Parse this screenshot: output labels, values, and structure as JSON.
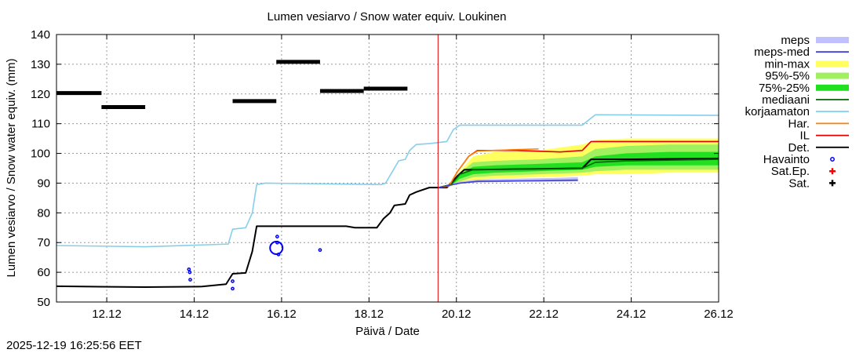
{
  "chart_data": {
    "type": "line",
    "title": "Lumen vesiarvo / Snow water equiv.  Loukinen",
    "xlabel": "Päivä / Date",
    "ylabel": "Lumen vesiarvo / Snow water equiv. (mm)",
    "xlim": [
      10.97,
      26.12
    ],
    "ylim": [
      50,
      140
    ],
    "yticks": [
      50,
      60,
      70,
      80,
      90,
      100,
      110,
      120,
      130,
      140
    ],
    "xticks": [
      {
        "x": 12.12,
        "label": "12.12"
      },
      {
        "x": 14.12,
        "label": "14.12"
      },
      {
        "x": 16.12,
        "label": "16.12"
      },
      {
        "x": 18.12,
        "label": "18.12"
      },
      {
        "x": 20.12,
        "label": "20.12"
      },
      {
        "x": 22.12,
        "label": "22.12"
      },
      {
        "x": 24.12,
        "label": "24.12"
      },
      {
        "x": 26.12,
        "label": "26.12"
      }
    ],
    "grid": true,
    "forecast_start": 19.7,
    "timestamp": "2025-12-19 16:25:56 EET",
    "legend": [
      {
        "label": "meps",
        "kind": "band",
        "color": "#c0c0ff"
      },
      {
        "label": "meps-med",
        "kind": "line",
        "color": "#4040d0"
      },
      {
        "label": "min-max",
        "kind": "band",
        "color": "#ffff60"
      },
      {
        "label": "95%-5%",
        "kind": "band",
        "color": "#a0f060"
      },
      {
        "label": "75%-25%",
        "kind": "band",
        "color": "#20e020"
      },
      {
        "label": "mediaani",
        "kind": "line",
        "color": "#006400"
      },
      {
        "label": "korjaamaton",
        "kind": "line",
        "color": "#87ceeb"
      },
      {
        "label": "Har.",
        "kind": "line",
        "color": "#ff8000"
      },
      {
        "label": "IL",
        "kind": "line",
        "color": "#e00000"
      },
      {
        "label": "Det.",
        "kind": "line",
        "color": "#000000"
      },
      {
        "label": "Havainto",
        "kind": "circle",
        "color": "#0000ff"
      },
      {
        "label": "Sat.Ep.",
        "kind": "plus",
        "color": "#ff0000"
      },
      {
        "label": "Sat.",
        "kind": "plus",
        "color": "#000000"
      }
    ],
    "series": [
      {
        "name": "korjaamaton",
        "color": "#87ceeb",
        "points": [
          [
            10.97,
            69
          ],
          [
            13.0,
            68.6
          ],
          [
            14.3,
            69.2
          ],
          [
            14.9,
            69.5
          ],
          [
            15.0,
            74.5
          ],
          [
            15.3,
            75
          ],
          [
            15.45,
            80
          ],
          [
            15.55,
            89.5
          ],
          [
            15.75,
            90
          ],
          [
            18.4,
            89.5
          ],
          [
            18.5,
            90
          ],
          [
            18.7,
            95
          ],
          [
            18.8,
            97.5
          ],
          [
            18.95,
            98
          ],
          [
            19.05,
            101
          ],
          [
            19.2,
            103
          ],
          [
            19.5,
            103.3
          ],
          [
            19.9,
            104
          ],
          [
            20.05,
            108
          ],
          [
            20.2,
            109.5
          ],
          [
            23.0,
            109.5
          ],
          [
            23.3,
            113
          ],
          [
            26.12,
            112.8
          ]
        ]
      },
      {
        "name": "Det.",
        "color": "#000000",
        "points": [
          [
            10.97,
            55.3
          ],
          [
            13.0,
            55
          ],
          [
            14.3,
            55.2
          ],
          [
            14.85,
            56
          ],
          [
            15.0,
            59.5
          ],
          [
            15.3,
            59.8
          ],
          [
            15.45,
            67
          ],
          [
            15.55,
            75.5
          ],
          [
            15.75,
            75.5
          ],
          [
            17.6,
            75.5
          ],
          [
            17.8,
            75
          ],
          [
            18.3,
            75
          ],
          [
            18.45,
            78
          ],
          [
            18.6,
            80
          ],
          [
            18.7,
            82.5
          ],
          [
            18.95,
            83
          ],
          [
            19.05,
            86
          ],
          [
            19.2,
            87
          ],
          [
            19.5,
            88.5
          ],
          [
            19.7,
            88.5
          ],
          [
            19.9,
            88.5
          ],
          [
            20.0,
            90
          ],
          [
            20.15,
            92.5
          ],
          [
            20.3,
            94.5
          ],
          [
            23.0,
            95
          ],
          [
            23.2,
            98
          ],
          [
            24.0,
            98
          ],
          [
            26.12,
            98.3
          ]
        ]
      },
      {
        "name": "IL",
        "color": "#e00000",
        "points": [
          [
            19.7,
            88.5
          ],
          [
            19.95,
            89
          ],
          [
            20.15,
            94
          ],
          [
            20.4,
            99
          ],
          [
            20.6,
            101
          ],
          [
            21.5,
            101
          ],
          [
            22.5,
            100.5
          ],
          [
            23.0,
            101
          ],
          [
            23.2,
            104
          ],
          [
            24.3,
            104
          ],
          [
            26.12,
            104
          ]
        ]
      },
      {
        "name": "Har.",
        "color": "#ff8000",
        "points": [
          [
            19.7,
            88.5
          ],
          [
            19.95,
            89
          ],
          [
            20.15,
            94
          ],
          [
            20.4,
            99
          ],
          [
            20.6,
            100.8
          ],
          [
            21.5,
            101.3
          ],
          [
            22.0,
            101.5
          ]
        ]
      },
      {
        "name": "mediaani",
        "color": "#006400",
        "points": [
          [
            19.7,
            88.5
          ],
          [
            20.0,
            89.5
          ],
          [
            20.2,
            93
          ],
          [
            20.5,
            94.5
          ],
          [
            23.0,
            95
          ],
          [
            23.3,
            97
          ],
          [
            24.0,
            97.5
          ],
          [
            26.12,
            98
          ]
        ]
      },
      {
        "name": "meps-med",
        "color": "#4040d0",
        "points": [
          [
            19.7,
            88.5
          ],
          [
            20.2,
            90
          ],
          [
            20.6,
            90.6
          ],
          [
            22.0,
            90.8
          ],
          [
            22.9,
            91
          ]
        ]
      }
    ],
    "bands": [
      {
        "name": "min-max",
        "color": "#ffff60",
        "x": [
          19.7,
          20.0,
          20.2,
          20.5,
          21.0,
          22.0,
          23.0,
          23.3,
          24.0,
          25.0,
          26.12
        ],
        "low": [
          88.5,
          89.0,
          90.0,
          91.0,
          91.5,
          92.0,
          92.5,
          93.0,
          93.0,
          93.5,
          93.5
        ],
        "high": [
          88.6,
          90.0,
          94.0,
          99.0,
          100.5,
          101.0,
          103.0,
          104.5,
          105.0,
          105.0,
          105.0
        ]
      },
      {
        "name": "95%-5%",
        "color": "#a0f060",
        "x": [
          19.7,
          20.0,
          20.2,
          20.5,
          21.0,
          22.0,
          23.0,
          23.3,
          24.0,
          25.0,
          26.12
        ],
        "low": [
          88.5,
          89.0,
          90.5,
          92.0,
          92.5,
          93.0,
          93.5,
          94.0,
          94.5,
          94.5,
          94.5
        ],
        "high": [
          88.6,
          89.8,
          93.5,
          97.0,
          97.5,
          98.0,
          99.0,
          101.5,
          102.5,
          103.0,
          103.0
        ]
      },
      {
        "name": "75%-25%",
        "color": "#20e020",
        "x": [
          19.7,
          20.0,
          20.2,
          20.5,
          21.0,
          22.0,
          23.0,
          23.3,
          24.0,
          25.0,
          26.12
        ],
        "low": [
          88.5,
          89.2,
          91.5,
          93.0,
          93.5,
          94.0,
          94.5,
          95.5,
          96.0,
          96.0,
          96.0
        ],
        "high": [
          88.6,
          89.6,
          93.0,
          95.5,
          96.0,
          96.5,
          97.0,
          99.0,
          100.0,
          100.5,
          100.5
        ]
      },
      {
        "name": "meps",
        "color": "#c0c0ff",
        "x": [
          19.7,
          20.2,
          20.6,
          21.5,
          22.5,
          22.9
        ],
        "low": [
          88.5,
          89.8,
          90.2,
          90.5,
          90.5,
          90.6
        ],
        "high": [
          88.6,
          90.5,
          91.2,
          91.5,
          91.8,
          92.0
        ]
      }
    ],
    "satellite_segments": [
      {
        "x0": 10.97,
        "x1": 12.0,
        "y": 120.3
      },
      {
        "x0": 12.0,
        "x1": 13.0,
        "y": 115.6
      },
      {
        "x0": 15.0,
        "x1": 16.0,
        "y": 117.6
      },
      {
        "x0": 16.0,
        "x1": 17.0,
        "y": 130.8
      },
      {
        "x0": 17.0,
        "x1": 18.0,
        "y": 121.0
      },
      {
        "x0": 18.0,
        "x1": 19.0,
        "y": 121.8
      }
    ],
    "observations": [
      {
        "x": 14.0,
        "y": 61.0
      },
      {
        "x": 14.02,
        "y": 60.0
      },
      {
        "x": 14.03,
        "y": 57.5
      },
      {
        "x": 15.0,
        "y": 57.0
      },
      {
        "x": 15.0,
        "y": 54.5
      },
      {
        "x": 16.0,
        "y": 68.2,
        "big": true
      },
      {
        "x": 16.02,
        "y": 72.0
      },
      {
        "x": 16.02,
        "y": 70.0
      },
      {
        "x": 16.05,
        "y": 66.0
      },
      {
        "x": 17.0,
        "y": 67.5
      }
    ]
  }
}
